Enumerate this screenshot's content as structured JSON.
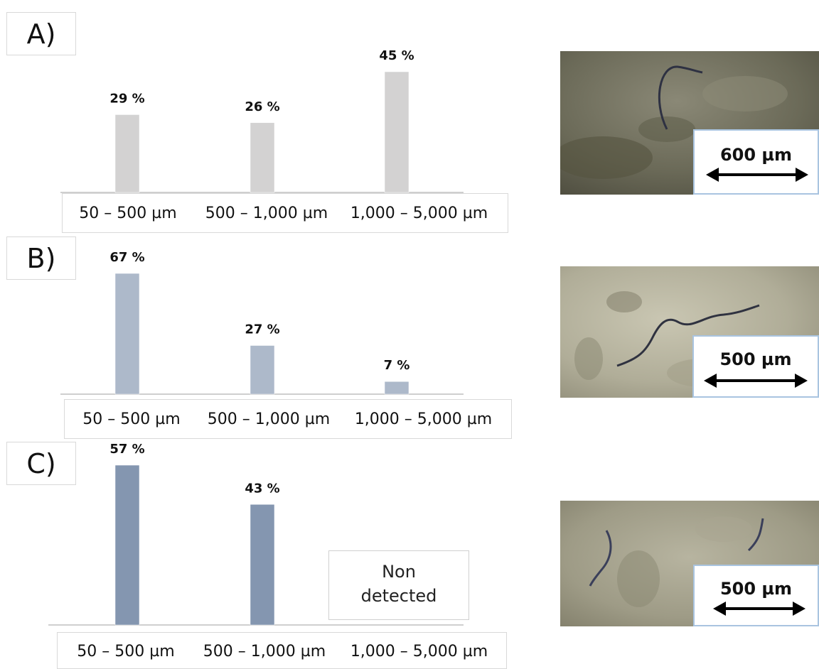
{
  "panels": [
    {
      "label": "A)"
    },
    {
      "label": "B)"
    },
    {
      "label": "C)",
      "non_detected_label": [
        "Non",
        "detected"
      ]
    }
  ],
  "scale_bars": [
    {
      "label": "600 µm"
    },
    {
      "label": "500 µm"
    },
    {
      "label": "500 µm"
    }
  ],
  "colors": {
    "A": "#d3d2d2",
    "B": "#adb9ca",
    "C": "#8496b0",
    "axis": "#bfbfbf"
  },
  "chart_data": [
    {
      "type": "bar",
      "panel": "A)",
      "categories": [
        "50 – 500 µm",
        "500 – 1,000 µm",
        "1,000 – 5,000 µm"
      ],
      "values": [
        29,
        26,
        45
      ],
      "data_labels": [
        "29 %",
        "26 %",
        "45  %"
      ],
      "unit": "%",
      "ylim": [
        0,
        70
      ],
      "grid": false
    },
    {
      "type": "bar",
      "panel": "B)",
      "categories": [
        "50 – 500 µm",
        "500 – 1,000 µm",
        "1,000 – 5,000 µm"
      ],
      "values": [
        67,
        27,
        7
      ],
      "data_labels": [
        "67 %",
        "27 %",
        "7 %"
      ],
      "unit": "%",
      "ylim": [
        0,
        70
      ],
      "grid": false
    },
    {
      "type": "bar",
      "panel": "C)",
      "categories": [
        "50 – 500 µm",
        "500 – 1,000 µm",
        "1,000 – 5,000 µm"
      ],
      "values": [
        57,
        43,
        0
      ],
      "data_labels": [
        "57 %",
        "43 %",
        ""
      ],
      "unit": "%",
      "ylim": [
        0,
        70
      ],
      "grid": false
    }
  ]
}
